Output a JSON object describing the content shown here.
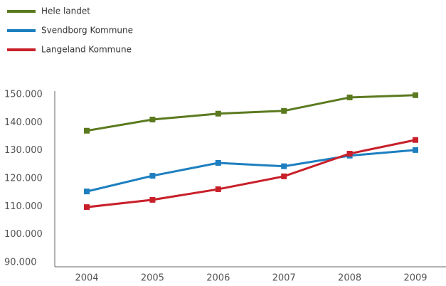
{
  "chart_data": {
    "type": "line",
    "categories": [
      "2004",
      "2005",
      "2006",
      "2007",
      "2008",
      "2009"
    ],
    "series": [
      {
        "name": "Hele landet",
        "color": "#5b7a1f",
        "values": [
          137100,
          141100,
          143200,
          144200,
          149000,
          149800
        ]
      },
      {
        "name": "Svendborg Kommune",
        "color": "#1d7fc0",
        "values": [
          115400,
          121000,
          125600,
          124400,
          128200,
          130200
        ]
      },
      {
        "name": "Langeland Kommune",
        "color": "#c8202a",
        "values": [
          109800,
          112400,
          116200,
          120800,
          128900,
          133800
        ]
      }
    ],
    "ylim": [
      90000,
      150000
    ],
    "yticks": [
      {
        "value": 90000,
        "label": "90.000"
      },
      {
        "value": 100000,
        "label": "100.000"
      },
      {
        "value": 110000,
        "label": "110.000"
      },
      {
        "value": 120000,
        "label": "120.000"
      },
      {
        "value": 130000,
        "label": "130.000"
      },
      {
        "value": 140000,
        "label": "140.000"
      },
      {
        "value": 150000,
        "label": "150.000"
      }
    ],
    "legend": "top-left"
  }
}
